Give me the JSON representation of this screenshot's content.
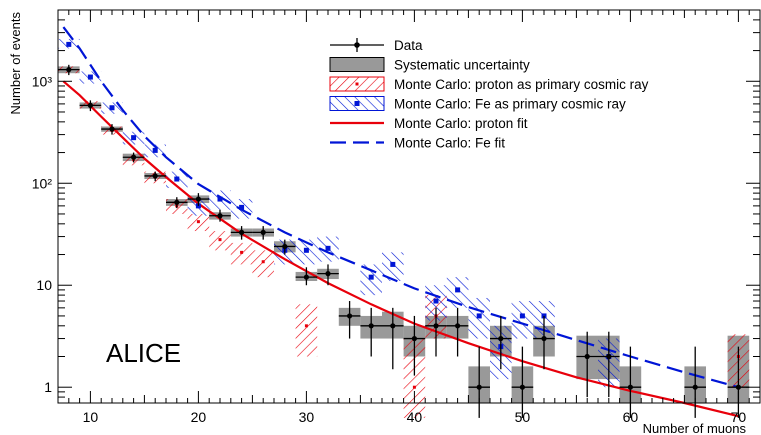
{
  "chart_data": {
    "type": "scatter",
    "title": "",
    "experiment_label": "ALICE",
    "xlabel": "Number of muons",
    "ylabel": "Number of events",
    "xlim": [
      7,
      72
    ],
    "ylim": [
      0.7,
      5000
    ],
    "y_scale": "log",
    "x_ticks": [
      10,
      20,
      30,
      40,
      50,
      60,
      70
    ],
    "y_ticks": [
      {
        "value": 1,
        "label": "1"
      },
      {
        "value": 10,
        "label": "10"
      },
      {
        "value": 100,
        "label": "10²"
      },
      {
        "value": 1000,
        "label": "10³"
      }
    ],
    "legend_position": "top-right",
    "legend": [
      {
        "key": "data",
        "label": "Data"
      },
      {
        "key": "syst",
        "label": "Systematic uncertainty"
      },
      {
        "key": "mc_proton",
        "label": "Monte Carlo: proton as primary cosmic ray"
      },
      {
        "key": "mc_fe",
        "label": "Monte Carlo: Fe as primary cosmic ray"
      },
      {
        "key": "fit_proton",
        "label": "Monte Carlo: proton fit"
      },
      {
        "key": "fit_fe",
        "label": "Monte Carlo: Fe fit"
      }
    ],
    "colors": {
      "data": "#000000",
      "syst": "#999999",
      "proton": "#e8000b",
      "fe": "#0015d6"
    },
    "series": [
      {
        "name": "Data",
        "x": [
          8,
          10,
          12,
          14,
          16,
          18,
          20,
          22,
          24,
          26,
          28,
          30,
          32,
          34,
          36,
          38,
          40,
          42,
          44,
          46,
          48,
          50,
          52,
          56,
          58,
          60,
          66,
          70
        ],
        "y": [
          1300,
          580,
          340,
          180,
          118,
          65,
          70,
          48,
          33,
          33,
          24,
          12,
          13,
          5,
          4,
          4,
          3,
          4,
          4,
          1,
          3,
          1,
          3,
          2,
          2,
          1,
          1,
          1
        ],
        "y_low": [
          1150,
          510,
          300,
          160,
          105,
          57,
          60,
          42,
          28,
          28,
          20,
          10,
          10,
          3,
          2,
          1.5,
          1.3,
          2,
          2,
          0.5,
          1.5,
          0.5,
          1.5,
          0.8,
          0.8,
          0.5,
          0.5,
          0.5
        ],
        "y_high": [
          1450,
          650,
          380,
          200,
          130,
          73,
          80,
          55,
          38,
          38,
          28,
          15,
          16,
          7,
          6,
          6,
          5,
          6,
          6,
          2.5,
          5,
          2.5,
          5,
          3.5,
          3.5,
          2.5,
          2.5,
          2.5
        ],
        "syst_low": [
          1200,
          540,
          320,
          165,
          110,
          60,
          64,
          44,
          30,
          30,
          21,
          11,
          11.5,
          4,
          3,
          3,
          2,
          3,
          3,
          0.7,
          2,
          0.7,
          2,
          1.2,
          1.2,
          0.7,
          0.7,
          0.7
        ],
        "syst_high": [
          1400,
          620,
          360,
          195,
          126,
          70,
          76,
          52,
          36,
          36,
          27,
          13.5,
          14.5,
          6,
          5,
          5.5,
          4,
          5,
          5,
          1.6,
          4,
          1.6,
          4,
          3.2,
          3.2,
          1.6,
          1.6,
          3.2
        ]
      },
      {
        "name": "Monte Carlo: proton as primary cosmic ray",
        "x": [
          8,
          10,
          12,
          14,
          16,
          18,
          20,
          22,
          24,
          26,
          30,
          40,
          42,
          70
        ],
        "y": [
          1300,
          590,
          330,
          170,
          115,
          60,
          42,
          28,
          21,
          17,
          4,
          1,
          5,
          2
        ],
        "y_low": [
          1200,
          540,
          300,
          150,
          100,
          50,
          34,
          22,
          16,
          12,
          2,
          0.5,
          3,
          1
        ],
        "y_high": [
          1400,
          640,
          360,
          190,
          130,
          70,
          50,
          34,
          26,
          22,
          6.5,
          3,
          8,
          3.3
        ]
      },
      {
        "name": "Monte Carlo: Fe as primary cosmic ray",
        "x": [
          8,
          10,
          12,
          14,
          16,
          18,
          20,
          22,
          24,
          28,
          30,
          32,
          36,
          38,
          42,
          44,
          46,
          48,
          50,
          52,
          58
        ],
        "y": [
          2300,
          1100,
          550,
          280,
          210,
          110,
          60,
          70,
          58,
          22,
          22,
          23,
          12,
          16,
          7,
          9,
          5,
          2.5,
          5,
          5,
          2
        ],
        "y_low": [
          2100,
          950,
          480,
          240,
          180,
          90,
          48,
          55,
          45,
          16,
          16,
          17,
          8,
          11,
          4.5,
          6,
          3,
          1.2,
          3,
          3,
          1
        ],
        "y_high": [
          2600,
          1250,
          620,
          320,
          240,
          130,
          72,
          85,
          70,
          28,
          28,
          30,
          16,
          21,
          10,
          12,
          7.5,
          4,
          7,
          7,
          3
        ]
      },
      {
        "name": "Monte Carlo: proton fit",
        "x": [
          7.5,
          9,
          11,
          13,
          15,
          17,
          20,
          24,
          28,
          32,
          36,
          40,
          45,
          50,
          55,
          60,
          65,
          70
        ],
        "y": [
          1000,
          730,
          450,
          280,
          175,
          115,
          63,
          32,
          18,
          10.5,
          6.5,
          4.2,
          2.7,
          1.8,
          1.25,
          0.92,
          0.7,
          0.52
        ]
      },
      {
        "name": "Monte Carlo: Fe fit",
        "x": [
          7.5,
          9,
          11,
          13,
          15,
          17,
          20,
          24,
          28,
          32,
          36,
          40,
          45,
          50,
          55,
          60,
          65,
          70
        ],
        "y": [
          3400,
          2100,
          1000,
          520,
          290,
          180,
          98,
          55,
          33,
          21,
          14,
          9.3,
          6.1,
          4.2,
          2.9,
          2.0,
          1.4,
          1.0
        ]
      }
    ]
  }
}
